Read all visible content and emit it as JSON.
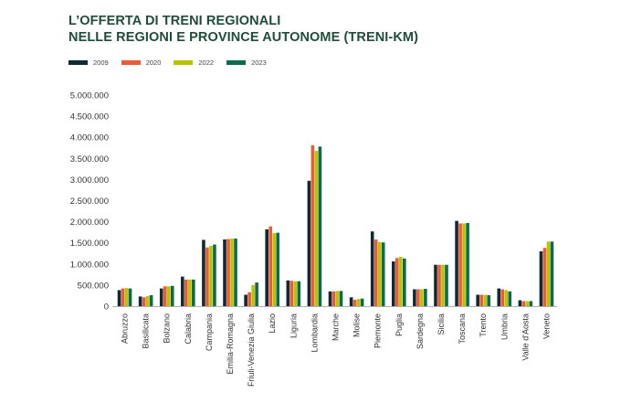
{
  "title_line1": "L’OFFERTA DI TRENI REGIONALI",
  "title_line2": "NELLE REGIONI E PROVINCE AUTONOME (TRENI-KM)",
  "colors": {
    "2009": "#0f2a33",
    "2020": "#ea5b3a",
    "2022": "#b9c400",
    "2023": "#0c6a4e"
  },
  "chart_data": {
    "type": "bar",
    "title": "L’OFFERTA DI TRENI REGIONALI NELLE REGIONI E PROVINCE AUTONOME (TRENI-KM)",
    "xlabel": "",
    "ylabel": "",
    "ylim": [
      0,
      5000000
    ],
    "yticks": [
      "0",
      "500.000",
      "1.000.000",
      "1.500.000",
      "2.000.000",
      "2.500.000",
      "3.000.000",
      "3.500.000",
      "4.000.000",
      "4.500.000",
      "5.000.000"
    ],
    "legend_position": "top-left",
    "categories": [
      "Abruzzo",
      "Basilicata",
      "Bolzano",
      "Calabria",
      "Campania",
      "Emilia-Romagna",
      "Friuli-Venezia Giulia",
      "Lazio",
      "Liguria",
      "Lombardia",
      "Marche",
      "Molise",
      "Piemonte",
      "Puglia",
      "Sardegna",
      "Sicilia",
      "Toscana",
      "Trento",
      "Umbria",
      "Valle d'Aosta",
      "Veneto"
    ],
    "series": [
      {
        "name": "2009",
        "values": [
          380000,
          230000,
          420000,
          700000,
          1570000,
          1580000,
          270000,
          1820000,
          610000,
          2970000,
          350000,
          210000,
          1770000,
          1060000,
          400000,
          980000,
          2020000,
          270000,
          420000,
          140000,
          1300000
        ]
      },
      {
        "name": "2020",
        "values": [
          420000,
          210000,
          470000,
          630000,
          1390000,
          1590000,
          330000,
          1890000,
          600000,
          3810000,
          350000,
          150000,
          1580000,
          1140000,
          400000,
          980000,
          1960000,
          270000,
          400000,
          120000,
          1380000
        ]
      },
      {
        "name": "2022",
        "values": [
          430000,
          240000,
          470000,
          630000,
          1430000,
          1600000,
          500000,
          1730000,
          590000,
          3680000,
          360000,
          170000,
          1520000,
          1170000,
          400000,
          980000,
          1960000,
          270000,
          380000,
          120000,
          1530000
        ]
      },
      {
        "name": "2023",
        "values": [
          420000,
          260000,
          480000,
          630000,
          1460000,
          1600000,
          560000,
          1740000,
          590000,
          3780000,
          360000,
          180000,
          1510000,
          1130000,
          410000,
          980000,
          1970000,
          260000,
          350000,
          120000,
          1530000
        ]
      }
    ]
  }
}
